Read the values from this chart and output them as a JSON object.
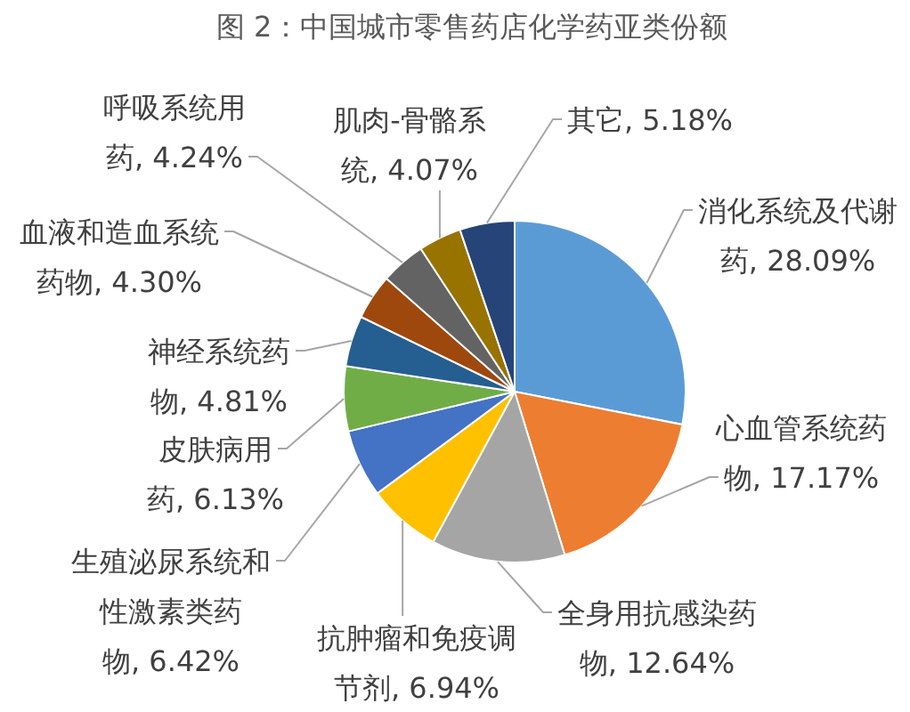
{
  "chart_data": {
    "type": "pie",
    "title": "图 2：中国城市零售药店化学药亚类份额",
    "categories": [
      "消化系统及代谢药",
      "心血管系统药物",
      "全身用抗感染药物",
      "抗肿瘤和免疫调节剂",
      "生殖泌尿系统和性激素类药物",
      "皮肤病用药",
      "神经系统药物",
      "血液和造血系统药物",
      "呼吸系统用药",
      "肌肉-骨骼系统",
      "其它"
    ],
    "values": [
      28.09,
      17.17,
      12.64,
      6.94,
      6.42,
      6.13,
      4.81,
      4.3,
      4.24,
      4.07,
      5.18
    ],
    "value_labels": [
      "28.09%",
      "17.17%",
      "12.64%",
      "6.94%",
      "6.42%",
      "6.13%",
      "4.81%",
      "4.30%",
      "4.24%",
      "4.07%",
      "5.18%"
    ],
    "colors": [
      "#5b9bd5",
      "#ed7d31",
      "#a5a5a5",
      "#ffc000",
      "#4472c4",
      "#70ad47",
      "#255e91",
      "#9e480e",
      "#636363",
      "#997300",
      "#264478"
    ]
  }
}
